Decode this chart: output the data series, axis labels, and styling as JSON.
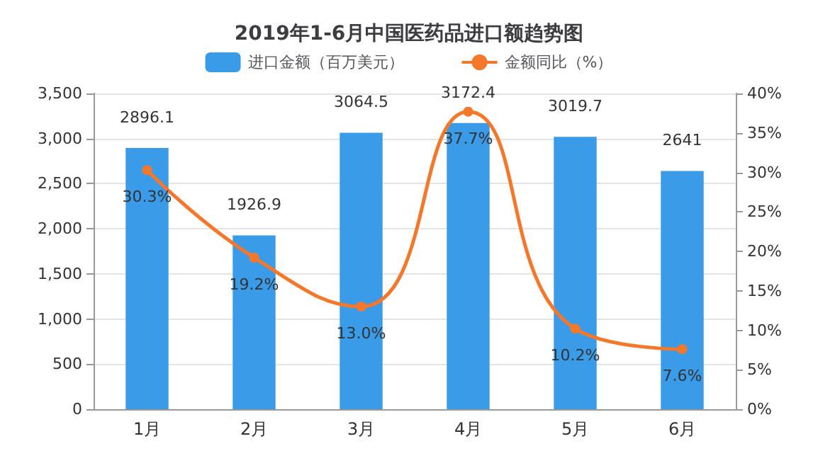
{
  "chart_data": {
    "type": "bar",
    "title": "2019年1-6月中国医药品进口额趋势图",
    "categories": [
      "1月",
      "2月",
      "3月",
      "4月",
      "5月",
      "6月"
    ],
    "series": [
      {
        "name": "进口金额（百万美元）",
        "color": "#3a9be8",
        "values": [
          2896.1,
          1926.9,
          3064.5,
          3172.4,
          3019.7,
          2641
        ],
        "data_labels": true
      },
      {
        "name": "金额同比（%）",
        "type": "line",
        "axis": "y2",
        "color": "#f5782a",
        "values": [
          30.3,
          19.2,
          13.0,
          37.7,
          10.2,
          7.6
        ],
        "value_labels": [
          "30.3%",
          "19.2%",
          "13.0%",
          "37.7%",
          "10.2%",
          "7.6%"
        ],
        "marker": "circle"
      }
    ],
    "ylim": [
      0,
      3500
    ],
    "yticks": [
      0,
      500,
      {
        "value": 1000,
        "label": "1,000"
      },
      {
        "value": 1500,
        "label": "1,500"
      },
      {
        "value": 2000,
        "label": "2,000"
      },
      {
        "value": 2500,
        "label": "2,500"
      },
      {
        "value": 3000,
        "label": "3,000"
      },
      {
        "value": 3500,
        "label": "3,500"
      }
    ],
    "y2lim": [
      0,
      40
    ],
    "y2ticks": [
      {
        "value": 0,
        "label": "0%"
      },
      {
        "value": 5,
        "label": "5%"
      },
      {
        "value": 10,
        "label": "10%"
      },
      {
        "value": 15,
        "label": "15%"
      },
      {
        "value": 20,
        "label": "20%"
      },
      {
        "value": 25,
        "label": "25%"
      },
      {
        "value": 30,
        "label": "30%"
      },
      {
        "value": 35,
        "label": "35%"
      },
      {
        "value": 40,
        "label": "40%"
      }
    ],
    "grid": "y",
    "legend": "top"
  }
}
